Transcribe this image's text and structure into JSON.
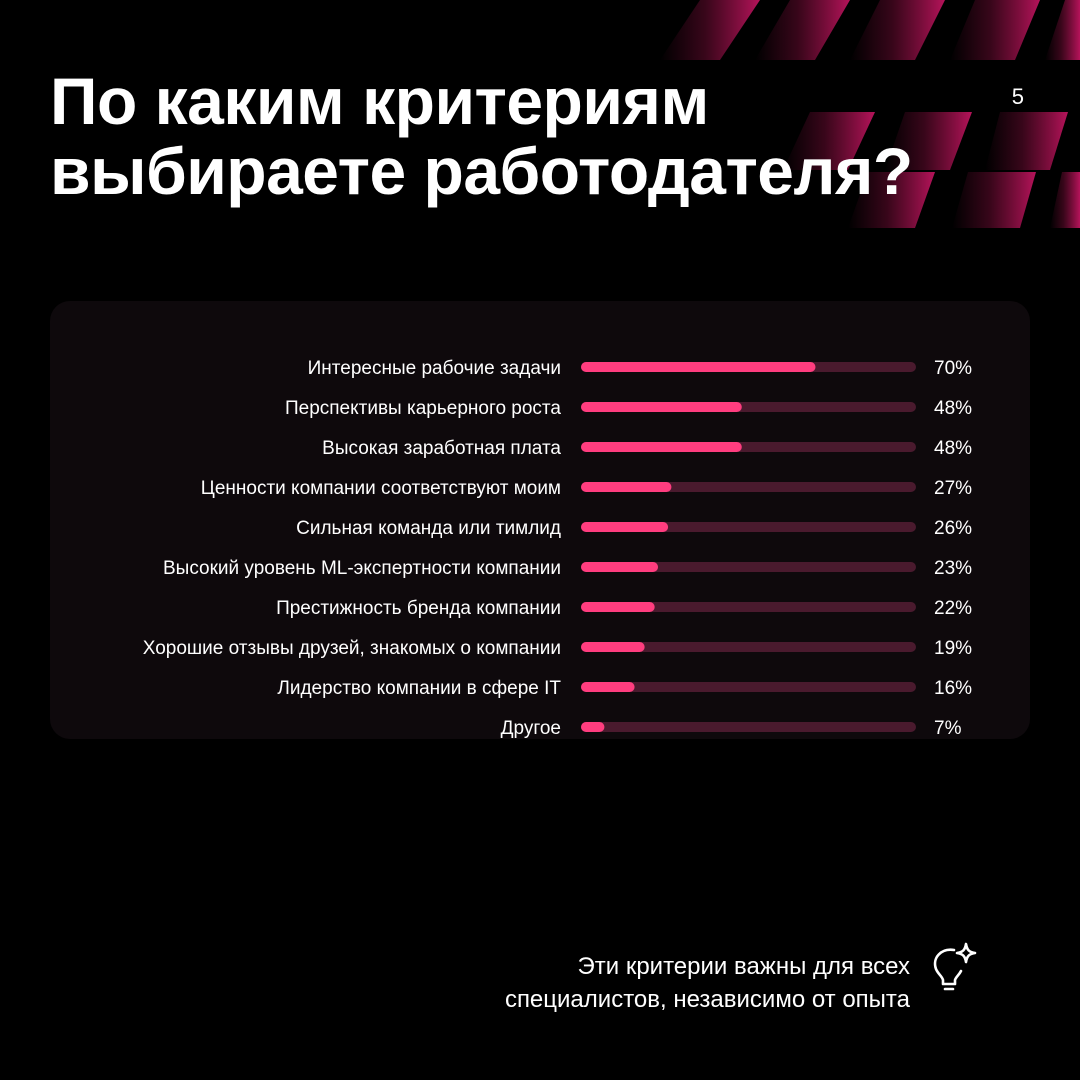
{
  "title_line1": "По каким критериям",
  "title_line2": "выбираете работодателя?",
  "page_number": "5",
  "footer_line1": "Эти критерии важны для всех",
  "footer_line2": "специалистов, независимо от опыта",
  "colors": {
    "accent": "#ff3d7f",
    "track": "#4a1a2e",
    "panel": "#0e090c",
    "decoration": "#a0124b"
  },
  "icons": {
    "footer": "lightbulb-sparkle-icon"
  },
  "chart_data": {
    "type": "bar",
    "orientation": "horizontal",
    "xlim": [
      0,
      100
    ],
    "categories": [
      "Интересные рабочие задачи",
      "Перспективы карьерного роста",
      "Высокая заработная плата",
      "Ценности компании соответствуют моим",
      "Сильная команда или тимлид",
      "Высокий уровень ML-экспертности компании",
      "Престижность бренда компании",
      "Хорошие отзывы друзей, знакомых о компании",
      "Лидерство компании в сфере IT",
      "Другое"
    ],
    "values": [
      70,
      48,
      48,
      27,
      26,
      23,
      22,
      19,
      16,
      7
    ],
    "value_labels": [
      "70%",
      "48%",
      "48%",
      "27%",
      "26%",
      "23%",
      "22%",
      "19%",
      "16%",
      "7%"
    ]
  }
}
